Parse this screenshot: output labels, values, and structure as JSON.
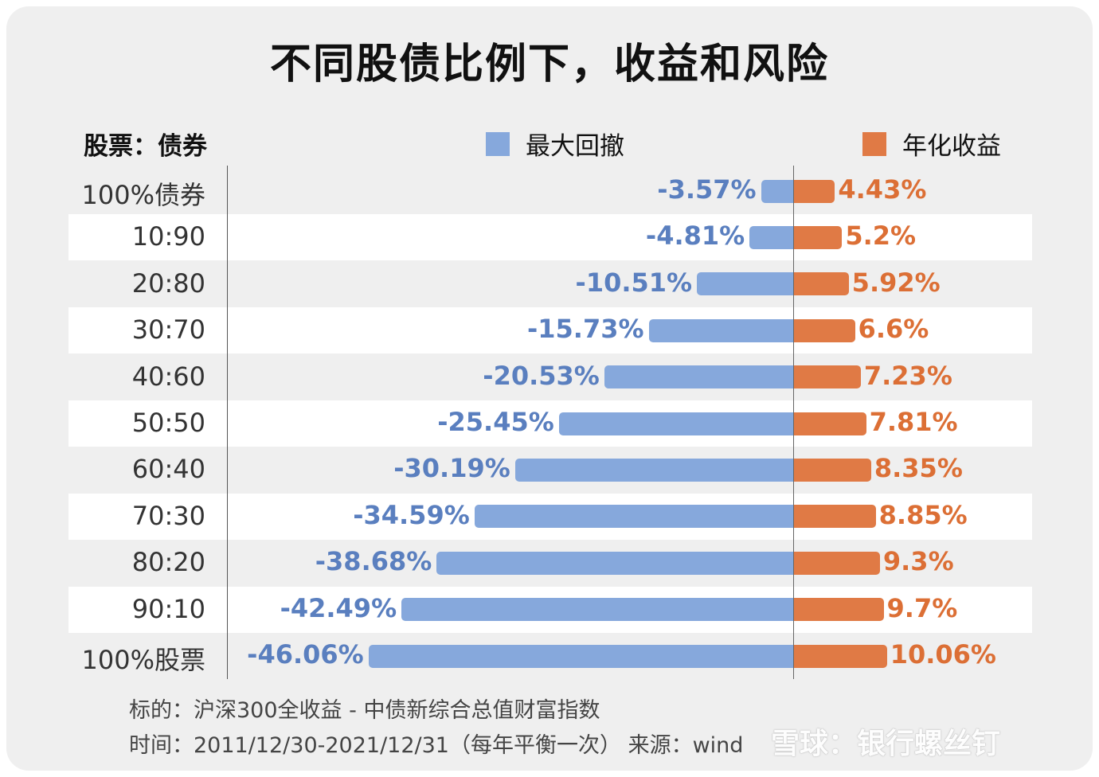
{
  "chart_data": {
    "type": "bar",
    "title": "不同股债比例下，收益和风险",
    "row_header": "股票：债券",
    "categories": [
      "100%债券",
      "10:90",
      "20:80",
      "30:70",
      "40:60",
      "50:50",
      "60:40",
      "70:30",
      "80:20",
      "90:10",
      "100%股票"
    ],
    "series": [
      {
        "name": "最大回撤",
        "color": "#86a8dc",
        "values": [
          -3.57,
          -4.81,
          -10.51,
          -15.73,
          -20.53,
          -25.45,
          -30.19,
          -34.59,
          -38.68,
          -42.49,
          -46.06
        ],
        "labels": [
          "-3.57%",
          "-4.81%",
          "-10.51%",
          "-15.73%",
          "-20.53%",
          "-25.45%",
          "-30.19%",
          "-34.59%",
          "-38.68%",
          "-42.49%",
          "-46.06%"
        ]
      },
      {
        "name": "年化收益",
        "color": "#e07a45",
        "values": [
          4.43,
          5.2,
          5.92,
          6.6,
          7.23,
          7.81,
          8.35,
          8.85,
          9.3,
          9.7,
          10.06
        ],
        "labels": [
          "4.43%",
          "5.2%",
          "5.92%",
          "6.6%",
          "7.23%",
          "7.81%",
          "8.35%",
          "8.85%",
          "9.3%",
          "9.7%",
          "10.06%"
        ]
      }
    ],
    "legend_placement": "top",
    "footnotes": [
      "标的：沪深300全收益 - 中债新综合总值财富指数",
      "时间：2011/12/30-2021/12/31（每年平衡一次）  来源：wind"
    ]
  },
  "watermark": "雪球：银行螺丝钉"
}
